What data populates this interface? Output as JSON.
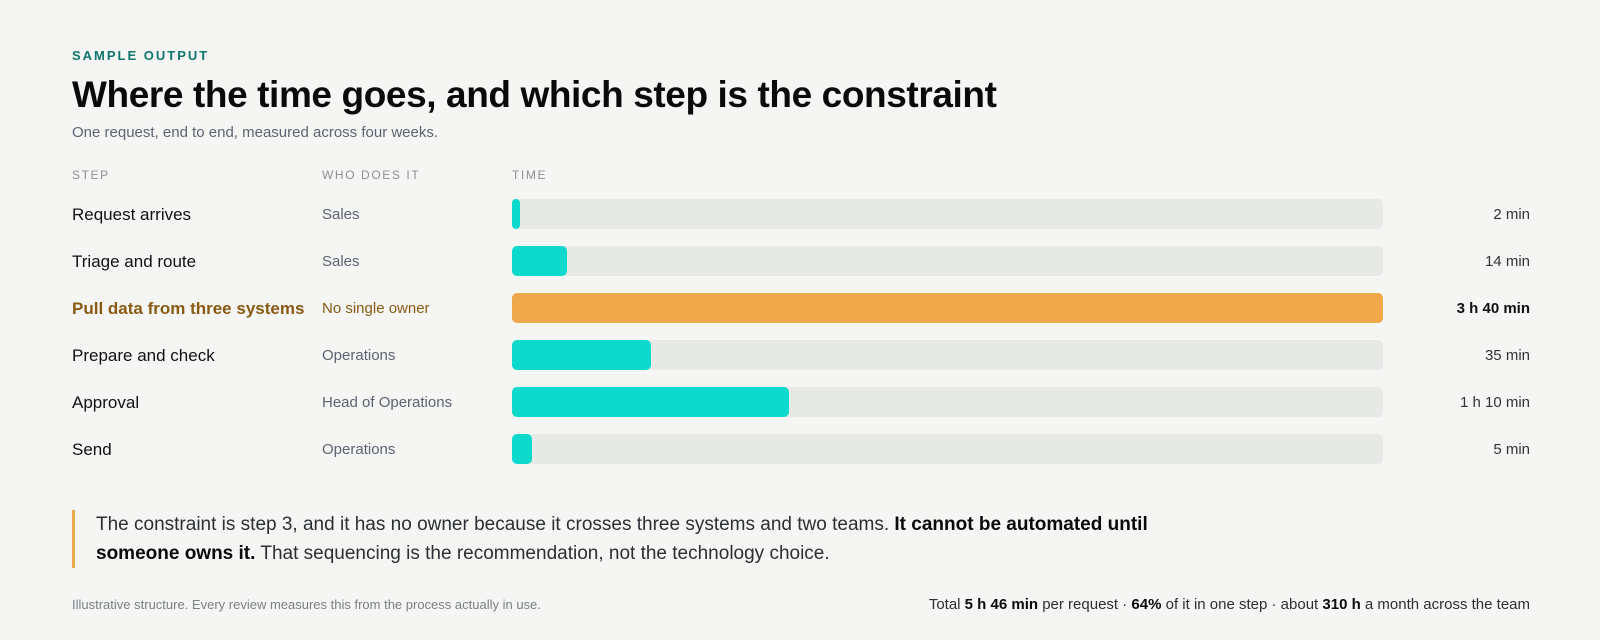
{
  "eyebrow": "SAMPLE OUTPUT",
  "title": "Where the time goes, and which step is the constraint",
  "subtitle": "One request, end to end, measured across four weeks.",
  "headers": {
    "step": "STEP",
    "who": "WHO DOES IT",
    "time": "TIME"
  },
  "colors": {
    "bar": "#0dd9cc",
    "constraint_bar": "#f0a94a",
    "track": "#e7e9e7",
    "accent": "#0f766e"
  },
  "chart_data": {
    "type": "bar",
    "orientation": "horizontal",
    "unit": "minutes",
    "xlim": [
      0,
      220
    ],
    "categories": [
      "Request arrives",
      "Triage and route",
      "Pull data from three systems",
      "Prepare and check",
      "Approval",
      "Send"
    ],
    "owners": [
      "Sales",
      "Sales",
      "No single owner",
      "Operations",
      "Head of Operations",
      "Operations"
    ],
    "values": [
      2,
      14,
      220,
      35,
      70,
      5
    ],
    "labels": [
      "2 min",
      "14 min",
      "3 h 40 min",
      "35 min",
      "1 h 10 min",
      "5 min"
    ],
    "highlight_index": 2
  },
  "callout": {
    "text_1": "The constraint is step 3, and it has no owner because it crosses three systems and two teams. ",
    "bold": "It cannot be automated until someone owns it.",
    "text_2": " That sequencing is the recommendation, not the technology choice."
  },
  "footnote": "Illustrative structure. Every review measures this from the process actually in use.",
  "totals": {
    "prefix": "Total ",
    "total": "5 h 46 min",
    "mid1": " per request · ",
    "share": "64%",
    "mid2": " of it in one step · about ",
    "monthly": "310 h",
    "suffix": " a month across the team"
  }
}
